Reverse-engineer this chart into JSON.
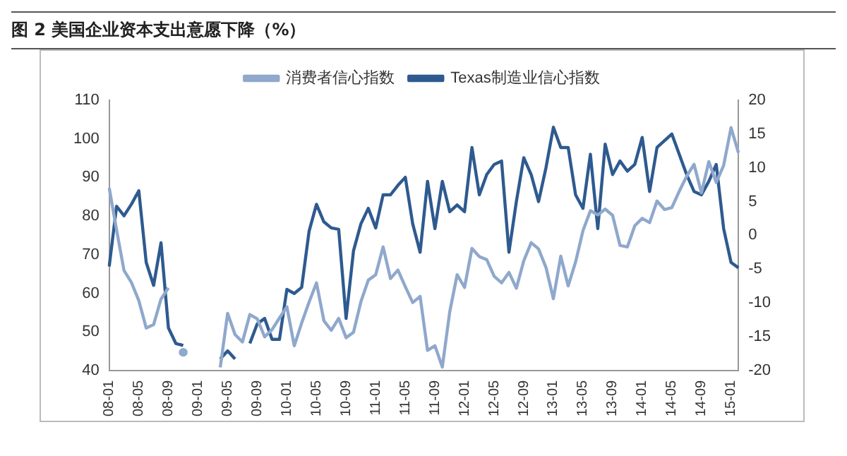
{
  "chart_data": {
    "type": "line",
    "title": "图 2   美国企业资本支出意愿下降（%）",
    "categories": [
      "08-01",
      null,
      null,
      null,
      "08-05",
      null,
      null,
      null,
      "08-09",
      null,
      null,
      null,
      "09-01",
      null,
      null,
      null,
      "09-05",
      null,
      null,
      null,
      "09-09",
      null,
      null,
      null,
      "10-01",
      null,
      null,
      null,
      "10-05",
      null,
      null,
      null,
      "10-09",
      null,
      null,
      null,
      "11-01",
      null,
      null,
      null,
      "11-05",
      null,
      null,
      null,
      "11-09",
      null,
      null,
      null,
      "12-01",
      null,
      null,
      null,
      "12-05",
      null,
      null,
      null,
      "12-09",
      null,
      null,
      null,
      "13-01",
      null,
      null,
      null,
      "13-05",
      null,
      null,
      null,
      "13-09",
      null,
      null,
      null,
      "14-01",
      null,
      null,
      null,
      "14-05",
      null,
      null,
      null,
      "14-09",
      null,
      null,
      null,
      "15-01",
      null
    ],
    "series": [
      {
        "name": "消费者信心指数",
        "color": "#8fa8cc",
        "values": [
          87.3,
          76.4,
          65.9,
          62.8,
          58.1,
          51.0,
          51.9,
          58.5,
          61.4,
          null,
          44.7,
          null,
          null,
          null,
          null,
          40.8,
          54.8,
          49.3,
          47.4,
          54.5,
          53.4,
          48.7,
          50.6,
          53.6,
          56.5,
          46.4,
          52.3,
          57.7,
          62.7,
          52.9,
          50.4,
          53.5,
          48.5,
          49.9,
          57.8,
          63.4,
          64.8,
          72.0,
          63.8,
          66.0,
          61.7,
          57.6,
          59.2,
          45.2,
          46.4,
          40.9,
          55.2,
          64.8,
          61.5,
          71.6,
          69.5,
          68.7,
          64.4,
          62.7,
          65.4,
          61.3,
          68.4,
          73.1,
          71.5,
          66.7,
          58.6,
          69.6,
          61.9,
          68.1,
          76.2,
          81.4,
          80.3,
          81.8,
          80.2,
          72.4,
          72.0,
          77.5,
          79.4,
          78.3,
          83.9,
          81.7,
          82.2,
          86.4,
          90.3,
          93.4,
          86.0,
          94.1,
          88.7,
          93.1,
          102.9,
          96.4
        ]
      },
      {
        "name": "Texas制造业信心指数",
        "color": "#2e5a8f",
        "axis": "y2",
        "values": [
          -4.6,
          4.3,
          2.9,
          4.6,
          6.6,
          -4,
          -7.4,
          -1.1,
          -13.7,
          -16,
          -16.3,
          null,
          null,
          null,
          null,
          -18.3,
          -17.1,
          -18.3,
          null,
          -16,
          -13.1,
          -12.3,
          -15.4,
          -15.4,
          -8,
          -8.6,
          -7.7,
          0.6,
          4.6,
          2,
          1.1,
          0.9,
          -12.3,
          -2.3,
          1.7,
          4,
          1.1,
          6,
          6,
          7.4,
          8.6,
          1.7,
          -2.5,
          8,
          1,
          8,
          3.5,
          4.5,
          3.5,
          13,
          6,
          9,
          10.5,
          11,
          -2.5,
          5,
          11.5,
          9,
          5,
          10,
          16,
          13,
          13,
          6,
          4,
          12,
          1,
          13.5,
          9,
          11,
          9.5,
          10.5,
          14.5,
          6.5,
          13,
          14,
          15,
          12,
          9,
          6.5,
          6,
          8,
          10.5,
          1,
          -4,
          -4.8
        ]
      }
    ],
    "ylim": [
      40,
      110
    ],
    "yticks": [
      40,
      50,
      60,
      70,
      80,
      90,
      100,
      110
    ],
    "y2lim": [
      -20,
      20
    ],
    "y2ticks": [
      -20,
      -15,
      -10,
      -5,
      0,
      5,
      10,
      15,
      20
    ],
    "grid": false,
    "legend": "top",
    "marker": "none",
    "line_style": "solid"
  }
}
